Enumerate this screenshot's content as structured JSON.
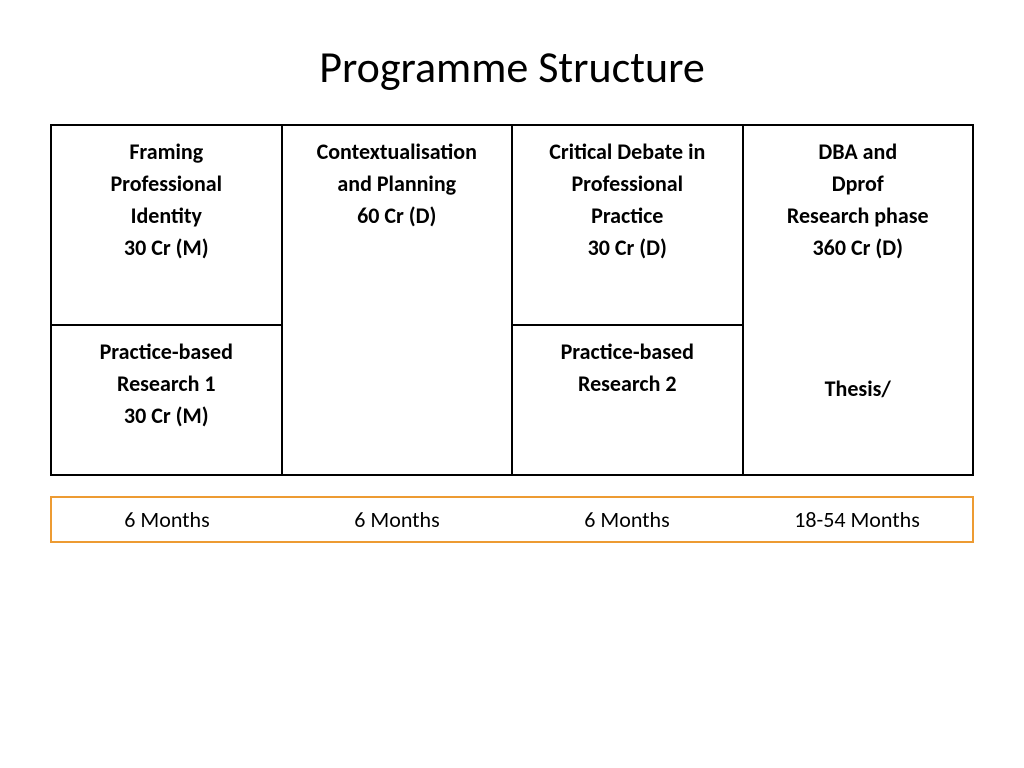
{
  "title": "Programme Structure",
  "table": {
    "type": "table",
    "border_color": "#000000",
    "background_color": "#ffffff",
    "font_size_pt": 17,
    "font_weight": "600",
    "columns": 4,
    "cells": {
      "c1r1": {
        "lines": [
          "Framing",
          "Professional",
          "Identity",
          "30 Cr (M)"
        ]
      },
      "c1r2": {
        "lines": [
          "Practice-based",
          "Research 1",
          "30 Cr (M)"
        ]
      },
      "c2": {
        "lines": [
          "Contextualisation",
          "and Planning",
          "60 Cr (D)"
        ],
        "rowspan": 2
      },
      "c3r1": {
        "lines": [
          "Critical Debate in",
          "Professional",
          "Practice",
          "30 Cr (D)"
        ]
      },
      "c3r2": {
        "lines": [
          "Practice-based",
          "Research 2"
        ]
      },
      "c4": {
        "top_lines": [
          "DBA and",
          "Dprof",
          "Research phase",
          "360 Cr (D)"
        ],
        "bottom_line": "Thesis/",
        "rowspan": 2
      }
    }
  },
  "timeline": {
    "border_color": "#ed9b33",
    "font_size_pt": 17,
    "font_weight": "400",
    "items": [
      "6 Months",
      "6 Months",
      "6 Months",
      "18-54 Months"
    ]
  }
}
